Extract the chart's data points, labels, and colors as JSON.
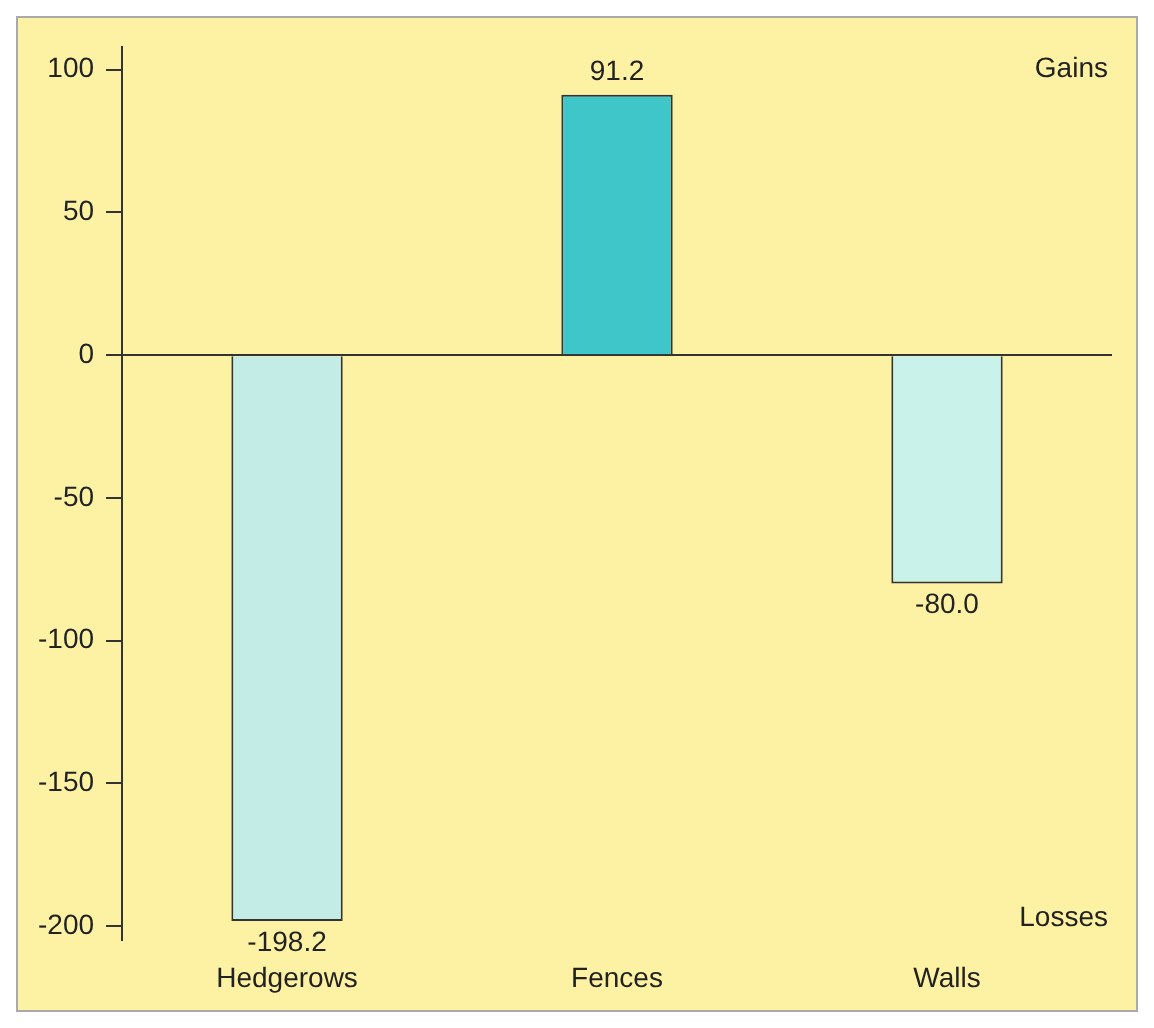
{
  "chart_data": {
    "type": "bar",
    "categories": [
      "Hedgerows",
      "Fences",
      "Walls"
    ],
    "values": [
      -198.2,
      91.2,
      -80.0
    ],
    "colors": [
      "#c4ece6",
      "#3ec6c8",
      "#c8f2ea"
    ],
    "value_labels": [
      "-198.2",
      "91.2",
      "-80.0"
    ],
    "ylim": [
      -205,
      108
    ],
    "yticks": [
      -200,
      -150,
      -100,
      -50,
      0,
      50,
      100
    ],
    "annotations": [
      "Gains",
      "Losses"
    ]
  }
}
